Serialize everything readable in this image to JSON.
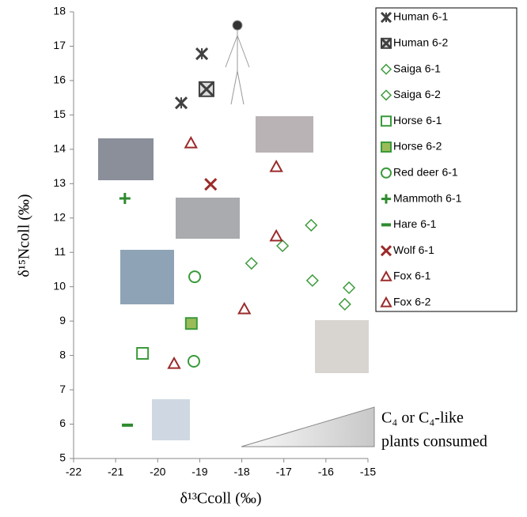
{
  "chart_data": {
    "type": "scatter",
    "xlabel": "δ¹³Ccoll (‰)",
    "ylabel": "δ¹⁵Ncoll (‰)",
    "annotation": [
      "C₄ or  C₄-like",
      "plants consumed"
    ],
    "xlim": [
      -22,
      -15
    ],
    "ylim": [
      5,
      18
    ],
    "xticks": [
      -22,
      -21,
      -20,
      -19,
      -18,
      -17,
      -16,
      -15
    ],
    "yticks": [
      5,
      6,
      7,
      8,
      9,
      10,
      11,
      12,
      13,
      14,
      15,
      16,
      17,
      18
    ],
    "series": [
      {
        "name": "Human 6-1",
        "marker": "asterisk",
        "color": "#404040",
        "x": [
          -18.95,
          -19.44
        ],
        "values": [
          16.78,
          15.35
        ]
      },
      {
        "name": "Human 6-2",
        "marker": "boxed-x",
        "color": "#404040",
        "x": [
          -18.84
        ],
        "values": [
          15.75
        ]
      },
      {
        "name": "Saiga 6-1",
        "marker": "diamond",
        "color": "#3a9a3a",
        "x": [
          -17.77,
          -17.03,
          -16.35
        ],
        "values": [
          10.68,
          11.19,
          11.79
        ]
      },
      {
        "name": "Saiga 6-2",
        "marker": "diamond",
        "color": "#3a9a3a",
        "x": [
          -16.32,
          -15.45,
          -15.55
        ],
        "values": [
          10.18,
          9.97,
          9.49
        ]
      },
      {
        "name": "Horse 6-1",
        "marker": "square",
        "color": "#3a9a3a",
        "x": [
          -20.36
        ],
        "values": [
          8.06
        ]
      },
      {
        "name": "Horse 6-2",
        "marker": "square-filled",
        "color": "#3a9a3a",
        "x": [
          -19.2
        ],
        "values": [
          8.93
        ]
      },
      {
        "name": "Red deer 6-1",
        "marker": "circle",
        "color": "#3a9a3a",
        "x": [
          -19.12,
          -19.14
        ],
        "values": [
          10.29,
          7.83
        ]
      },
      {
        "name": "Mammoth 6-1",
        "marker": "plus",
        "color": "#2e8b2e",
        "x": [
          -20.78
        ],
        "values": [
          12.57
        ]
      },
      {
        "name": "Hare 6-1",
        "marker": "dash",
        "color": "#2e8b2e",
        "x": [
          -20.72
        ],
        "values": [
          5.97
        ]
      },
      {
        "name": "Wolf 6-1",
        "marker": "x",
        "color": "#9b2a2a",
        "x": [
          -18.74
        ],
        "values": [
          12.98
        ]
      },
      {
        "name": "Fox 6-1",
        "marker": "triangle",
        "color": "#9b2a2a",
        "x": [
          -19.21,
          -17.18,
          -17.18
        ],
        "values": [
          14.18,
          13.49,
          11.47
        ]
      },
      {
        "name": "Fox 6-2",
        "marker": "triangle",
        "color": "#9b2a2a",
        "x": [
          -17.94,
          -19.61
        ],
        "values": [
          9.35,
          7.76
        ]
      }
    ]
  }
}
